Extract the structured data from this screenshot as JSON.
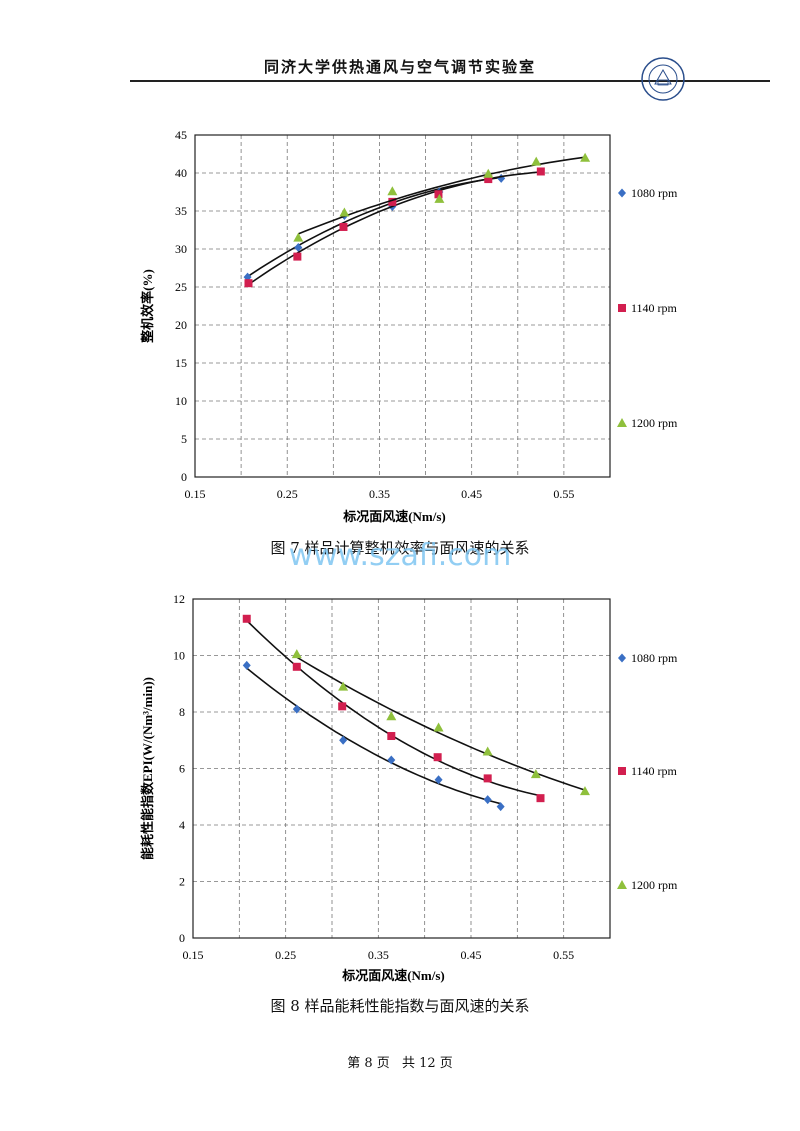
{
  "header": {
    "title": "同济大学供热通风与空气调节实验室"
  },
  "watermark": "www.szafi.com",
  "captions": [
    "图 7   样品计算整机效率与面风速的关系",
    "图 8   样品能耗性能指数与面风速的关系"
  ],
  "footer": {
    "page": "第 8 页",
    "total": "共 12 页"
  },
  "colors": {
    "1080 rpm": "#3a6fc4",
    "1140 rpm": "#d21f4f",
    "1200 rpm": "#8fc03c"
  },
  "chart_data": [
    {
      "type": "scatter",
      "xlabel": "标况面风速(Nm/s)",
      "ylabel": "整机效率(%)",
      "xlim": [
        0.15,
        0.6
      ],
      "ylim": [
        0,
        45
      ],
      "xticks": [
        "0.15",
        "0.25",
        "0.35",
        "0.45",
        "0.55"
      ],
      "xtick_values": [
        0.15,
        0.25,
        0.35,
        0.45,
        0.55
      ],
      "yticks": [
        0,
        5,
        10,
        15,
        20,
        25,
        30,
        35,
        40,
        45
      ],
      "grid": true,
      "legend": "right",
      "series": [
        {
          "name": "1080 rpm",
          "marker": "diamond",
          "x": [
            0.207,
            0.262,
            0.312,
            0.364,
            0.415,
            0.468,
            0.482
          ],
          "y": [
            26.3,
            30.2,
            34.4,
            35.6,
            37.5,
            39.6,
            39.3
          ]
        },
        {
          "name": "1140 rpm",
          "marker": "square",
          "x": [
            0.208,
            0.261,
            0.311,
            0.364,
            0.414,
            0.468,
            0.525
          ],
          "y": [
            25.5,
            29.0,
            32.9,
            36.2,
            37.2,
            39.2,
            40.2
          ]
        },
        {
          "name": "1200 rpm",
          "marker": "triangle",
          "x": [
            0.262,
            0.312,
            0.364,
            0.415,
            0.468,
            0.52,
            0.573
          ],
          "y": [
            31.5,
            34.8,
            37.6,
            36.6,
            39.9,
            41.5,
            42.0
          ]
        }
      ]
    },
    {
      "type": "scatter",
      "xlabel": "标况面风速(Nm/s)",
      "ylabel": "能耗性能指数EPI(W/(Nm³/min))",
      "xlim": [
        0.15,
        0.6
      ],
      "ylim": [
        0,
        12
      ],
      "xticks": [
        "0.15",
        "0.25",
        "0.35",
        "0.45",
        "0.55"
      ],
      "xtick_values": [
        0.15,
        0.25,
        0.35,
        0.45,
        0.55
      ],
      "yticks": [
        0,
        2,
        4,
        6,
        8,
        10,
        12
      ],
      "grid": true,
      "legend": "right",
      "series": [
        {
          "name": "1080 rpm",
          "marker": "diamond",
          "x": [
            0.208,
            0.262,
            0.312,
            0.364,
            0.415,
            0.468,
            0.482
          ],
          "y": [
            9.65,
            8.1,
            7.0,
            6.3,
            5.6,
            4.9,
            4.65
          ]
        },
        {
          "name": "1140 rpm",
          "marker": "square",
          "x": [
            0.208,
            0.262,
            0.311,
            0.364,
            0.414,
            0.468,
            0.525
          ],
          "y": [
            11.3,
            9.6,
            8.2,
            7.15,
            6.4,
            5.65,
            4.95
          ]
        },
        {
          "name": "1200 rpm",
          "marker": "triangle",
          "x": [
            0.262,
            0.312,
            0.364,
            0.415,
            0.468,
            0.52,
            0.573
          ],
          "y": [
            10.05,
            8.9,
            7.85,
            7.45,
            6.6,
            5.8,
            5.2
          ]
        }
      ]
    }
  ]
}
